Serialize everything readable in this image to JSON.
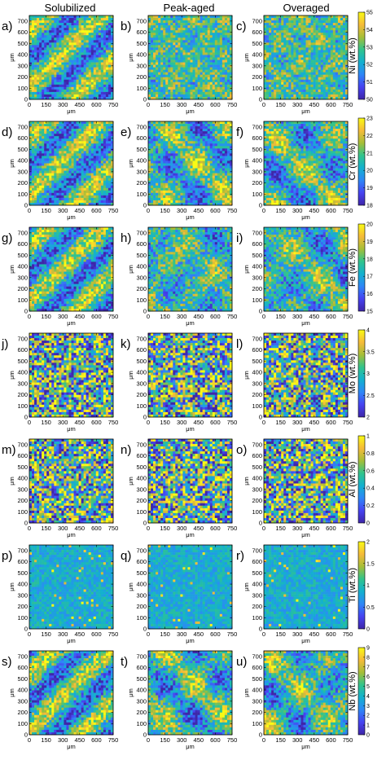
{
  "figure": {
    "column_titles": [
      "Solubilized",
      "Peak-aged",
      "Overaged"
    ],
    "axis_unit": "μm"
  },
  "chart_data": [
    {
      "type": "heatmap",
      "panel": "a)",
      "element": "Ni (wt.%)",
      "condition": "Solubilized",
      "xlim": [
        0,
        750
      ],
      "ylim": [
        0,
        750
      ],
      "x_ticks": [
        0,
        150,
        300,
        450,
        600,
        750
      ],
      "y_ticks": [
        0,
        100,
        200,
        300,
        400,
        500,
        600,
        700
      ],
      "clim": [
        50,
        55
      ],
      "pattern": "diagonal bands"
    },
    {
      "type": "heatmap",
      "panel": "b)",
      "element": "Ni (wt.%)",
      "condition": "Peak-aged",
      "xlim": [
        0,
        750
      ],
      "ylim": [
        0,
        750
      ],
      "x_ticks": [
        0,
        150,
        300,
        450,
        600,
        750
      ],
      "y_ticks": [
        0,
        100,
        200,
        300,
        400,
        500,
        600,
        700
      ],
      "clim": [
        50,
        55
      ],
      "pattern": "mottled"
    },
    {
      "type": "heatmap",
      "panel": "c)",
      "element": "Ni (wt.%)",
      "condition": "Overaged",
      "xlim": [
        0,
        750
      ],
      "ylim": [
        0,
        750
      ],
      "x_ticks": [
        0,
        150,
        300,
        450,
        600,
        750
      ],
      "y_ticks": [
        0,
        100,
        200,
        300,
        400,
        500,
        600,
        700
      ],
      "clim": [
        50,
        55
      ],
      "pattern": "mottled"
    },
    {
      "type": "heatmap",
      "panel": "d)",
      "element": "Cr (wt.%)",
      "condition": "Solubilized",
      "xlim": [
        0,
        750
      ],
      "ylim": [
        0,
        750
      ],
      "x_ticks": [
        0,
        150,
        300,
        450,
        600,
        750
      ],
      "y_ticks": [
        0,
        100,
        200,
        300,
        400,
        500,
        600,
        700
      ],
      "clim": [
        18,
        23
      ],
      "pattern": "diagonal bands"
    },
    {
      "type": "heatmap",
      "panel": "e)",
      "element": "Cr (wt.%)",
      "condition": "Peak-aged",
      "xlim": [
        0,
        750
      ],
      "ylim": [
        0,
        750
      ],
      "x_ticks": [
        0,
        150,
        300,
        450,
        600,
        750
      ],
      "y_ticks": [
        0,
        100,
        200,
        300,
        400,
        500,
        600,
        700
      ],
      "clim": [
        18,
        23
      ],
      "pattern": "dendritic"
    },
    {
      "type": "heatmap",
      "panel": "f)",
      "element": "Cr (wt.%)",
      "condition": "Overaged",
      "xlim": [
        0,
        750
      ],
      "ylim": [
        0,
        750
      ],
      "x_ticks": [
        0,
        150,
        300,
        450,
        600,
        750
      ],
      "y_ticks": [
        0,
        100,
        200,
        300,
        400,
        500,
        600,
        700
      ],
      "clim": [
        18,
        23
      ],
      "pattern": "dendritic"
    },
    {
      "type": "heatmap",
      "panel": "g)",
      "element": "Fe (wt.%)",
      "condition": "Solubilized",
      "xlim": [
        0,
        750
      ],
      "ylim": [
        0,
        750
      ],
      "x_ticks": [
        0,
        150,
        300,
        450,
        600,
        750
      ],
      "y_ticks": [
        0,
        100,
        200,
        300,
        400,
        500,
        600,
        700
      ],
      "clim": [
        15,
        20
      ],
      "pattern": "diagonal bands"
    },
    {
      "type": "heatmap",
      "panel": "h)",
      "element": "Fe (wt.%)",
      "condition": "Peak-aged",
      "xlim": [
        0,
        750
      ],
      "ylim": [
        0,
        750
      ],
      "x_ticks": [
        0,
        150,
        300,
        450,
        600,
        750
      ],
      "y_ticks": [
        0,
        100,
        200,
        300,
        400,
        500,
        600,
        700
      ],
      "clim": [
        15,
        20
      ],
      "pattern": "dendritic"
    },
    {
      "type": "heatmap",
      "panel": "i)",
      "element": "Fe (wt.%)",
      "condition": "Overaged",
      "xlim": [
        0,
        750
      ],
      "ylim": [
        0,
        750
      ],
      "x_ticks": [
        0,
        150,
        300,
        450,
        600,
        750
      ],
      "y_ticks": [
        0,
        100,
        200,
        300,
        400,
        500,
        600,
        700
      ],
      "clim": [
        15,
        20
      ],
      "pattern": "dendritic"
    },
    {
      "type": "heatmap",
      "panel": "j)",
      "element": "Mo (wt.%)",
      "condition": "Solubilized",
      "xlim": [
        0,
        750
      ],
      "ylim": [
        0,
        750
      ],
      "x_ticks": [
        0,
        150,
        300,
        450,
        600,
        750
      ],
      "y_ticks": [
        0,
        100,
        200,
        300,
        400,
        500,
        600,
        700
      ],
      "clim": [
        2,
        4
      ],
      "pattern": "noise"
    },
    {
      "type": "heatmap",
      "panel": "k)",
      "element": "Mo (wt.%)",
      "condition": "Peak-aged",
      "xlim": [
        0,
        750
      ],
      "ylim": [
        0,
        750
      ],
      "x_ticks": [
        0,
        150,
        300,
        450,
        600,
        750
      ],
      "y_ticks": [
        0,
        100,
        200,
        300,
        400,
        500,
        600,
        700
      ],
      "clim": [
        2,
        4
      ],
      "pattern": "noise"
    },
    {
      "type": "heatmap",
      "panel": "l)",
      "element": "Mo (wt.%)",
      "condition": "Overaged",
      "xlim": [
        0,
        750
      ],
      "ylim": [
        0,
        750
      ],
      "x_ticks": [
        0,
        150,
        300,
        450,
        600,
        750
      ],
      "y_ticks": [
        0,
        100,
        200,
        300,
        400,
        500,
        600,
        700
      ],
      "clim": [
        2,
        4
      ],
      "pattern": "noise"
    },
    {
      "type": "heatmap",
      "panel": "m)",
      "element": "Al (wt.%)",
      "condition": "Solubilized",
      "xlim": [
        0,
        750
      ],
      "ylim": [
        0,
        750
      ],
      "x_ticks": [
        0,
        150,
        300,
        450,
        600,
        750
      ],
      "y_ticks": [
        0,
        100,
        200,
        300,
        400,
        500,
        600,
        700
      ],
      "clim": [
        0,
        1
      ],
      "pattern": "noise"
    },
    {
      "type": "heatmap",
      "panel": "n)",
      "element": "Al (wt.%)",
      "condition": "Peak-aged",
      "xlim": [
        0,
        750
      ],
      "ylim": [
        0,
        750
      ],
      "x_ticks": [
        0,
        150,
        300,
        450,
        600,
        750
      ],
      "y_ticks": [
        0,
        100,
        200,
        300,
        400,
        500,
        600,
        700
      ],
      "clim": [
        0,
        1
      ],
      "pattern": "noise"
    },
    {
      "type": "heatmap",
      "panel": "o)",
      "element": "Al (wt.%)",
      "condition": "Overaged",
      "xlim": [
        0,
        750
      ],
      "ylim": [
        0,
        750
      ],
      "x_ticks": [
        0,
        150,
        300,
        450,
        600,
        750
      ],
      "y_ticks": [
        0,
        100,
        200,
        300,
        400,
        500,
        600,
        700
      ],
      "clim": [
        0,
        1
      ],
      "pattern": "noise"
    },
    {
      "type": "heatmap",
      "panel": "p)",
      "element": "Ti (wt.%)",
      "condition": "Solubilized",
      "xlim": [
        0,
        750
      ],
      "ylim": [
        0,
        750
      ],
      "x_ticks": [
        0,
        150,
        300,
        450,
        600,
        750
      ],
      "y_ticks": [
        0,
        100,
        200,
        300,
        400,
        500,
        600,
        700
      ],
      "clim": [
        0,
        2
      ],
      "pattern": "low with hotspots"
    },
    {
      "type": "heatmap",
      "panel": "q)",
      "element": "Ti (wt.%)",
      "condition": "Peak-aged",
      "xlim": [
        0,
        750
      ],
      "ylim": [
        0,
        750
      ],
      "x_ticks": [
        0,
        150,
        300,
        450,
        600,
        750
      ],
      "y_ticks": [
        0,
        100,
        200,
        300,
        400,
        500,
        600,
        700
      ],
      "clim": [
        0,
        2
      ],
      "pattern": "low with hotspots"
    },
    {
      "type": "heatmap",
      "panel": "r)",
      "element": "Ti (wt.%)",
      "condition": "Overaged",
      "xlim": [
        0,
        750
      ],
      "ylim": [
        0,
        750
      ],
      "x_ticks": [
        0,
        150,
        300,
        450,
        600,
        750
      ],
      "y_ticks": [
        0,
        100,
        200,
        300,
        400,
        500,
        600,
        700
      ],
      "clim": [
        0,
        2
      ],
      "pattern": "low with hotspots"
    },
    {
      "type": "heatmap",
      "panel": "s)",
      "element": "Nb (wt.%)",
      "condition": "Solubilized",
      "xlim": [
        0,
        750
      ],
      "ylim": [
        0,
        750
      ],
      "x_ticks": [
        0,
        150,
        300,
        450,
        600,
        750
      ],
      "y_ticks": [
        0,
        100,
        200,
        300,
        400,
        500,
        600,
        700
      ],
      "clim": [
        0,
        9
      ],
      "pattern": "diagonal bands"
    },
    {
      "type": "heatmap",
      "panel": "t)",
      "element": "Nb (wt.%)",
      "condition": "Peak-aged",
      "xlim": [
        0,
        750
      ],
      "ylim": [
        0,
        750
      ],
      "x_ticks": [
        0,
        150,
        300,
        450,
        600,
        750
      ],
      "y_ticks": [
        0,
        100,
        200,
        300,
        400,
        500,
        600,
        700
      ],
      "clim": [
        0,
        9
      ],
      "pattern": "dendritic"
    },
    {
      "type": "heatmap",
      "panel": "u)",
      "element": "Nb (wt.%)",
      "condition": "Overaged",
      "xlim": [
        0,
        750
      ],
      "ylim": [
        0,
        750
      ],
      "x_ticks": [
        0,
        150,
        300,
        450,
        600,
        750
      ],
      "y_ticks": [
        0,
        100,
        200,
        300,
        400,
        500,
        600,
        700
      ],
      "clim": [
        0,
        9
      ],
      "pattern": "dendritic"
    }
  ],
  "colorbars": [
    {
      "label": "Ni (wt.%)",
      "ticks": [
        "55",
        "54",
        "53",
        "52",
        "51",
        "50"
      ]
    },
    {
      "label": "Cr (wt.%)",
      "ticks": [
        "23",
        "22",
        "21",
        "20",
        "19",
        "18"
      ]
    },
    {
      "label": "Fe (wt.%)",
      "ticks": [
        "20",
        "19",
        "18",
        "17",
        "16",
        "15"
      ]
    },
    {
      "label": "Mo (wt.%)",
      "ticks": [
        "4",
        "3.5",
        "3",
        "2.5",
        "2"
      ]
    },
    {
      "label": "Al (wt.%)",
      "ticks": [
        "1",
        "0.8",
        "0.6",
        "0.4",
        "0.2",
        "0"
      ]
    },
    {
      "label": "Ti (wt.%)",
      "ticks": [
        "2",
        "1.5",
        "1",
        "0.5",
        "0"
      ]
    },
    {
      "label": "Nb (wt.%)",
      "ticks": [
        "9",
        "8",
        "7",
        "6",
        "5",
        "4",
        "3",
        "2",
        "1",
        "0"
      ]
    }
  ],
  "colors": {
    "colormap": [
      "#3e26a8",
      "#4743f2",
      "#2e87f7",
      "#13b1cf",
      "#31c48c",
      "#a6be37",
      "#f6bb3a",
      "#f9fb14"
    ],
    "axis": "#000000",
    "background": "#ffffff"
  }
}
